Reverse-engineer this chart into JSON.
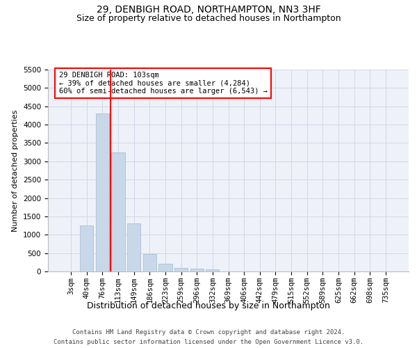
{
  "title_line1": "29, DENBIGH ROAD, NORTHAMPTON, NN3 3HF",
  "title_line2": "Size of property relative to detached houses in Northampton",
  "xlabel": "Distribution of detached houses by size in Northampton",
  "ylabel": "Number of detached properties",
  "footer_line1": "Contains HM Land Registry data © Crown copyright and database right 2024.",
  "footer_line2": "Contains public sector information licensed under the Open Government Licence v3.0.",
  "categories": [
    "3sqm",
    "40sqm",
    "76sqm",
    "113sqm",
    "149sqm",
    "186sqm",
    "223sqm",
    "259sqm",
    "296sqm",
    "332sqm",
    "369sqm",
    "406sqm",
    "442sqm",
    "479sqm",
    "515sqm",
    "552sqm",
    "589sqm",
    "625sqm",
    "662sqm",
    "698sqm",
    "735sqm"
  ],
  "bar_values": [
    0,
    1250,
    4300,
    3250,
    1300,
    470,
    200,
    100,
    80,
    60,
    0,
    0,
    0,
    0,
    0,
    0,
    0,
    0,
    0,
    0,
    0
  ],
  "bar_color": "#c8d8e8",
  "bar_edge_color": "#a0b8d0",
  "grid_color": "#d0d8e8",
  "background_color": "#eef2f8",
  "vline_x_index": 2.5,
  "vline_color": "red",
  "annotation_text": "29 DENBIGH ROAD: 103sqm\n← 39% of detached houses are smaller (4,284)\n60% of semi-detached houses are larger (6,543) →",
  "annotation_box_color": "white",
  "annotation_box_edge_color": "red",
  "annotation_fontsize": 7.5,
  "ylim": [
    0,
    5500
  ],
  "yticks": [
    0,
    500,
    1000,
    1500,
    2000,
    2500,
    3000,
    3500,
    4000,
    4500,
    5000,
    5500
  ],
  "title_fontsize": 10,
  "subtitle_fontsize": 9,
  "xlabel_fontsize": 9,
  "ylabel_fontsize": 8,
  "tick_fontsize": 7.5,
  "footer_fontsize": 6.5
}
